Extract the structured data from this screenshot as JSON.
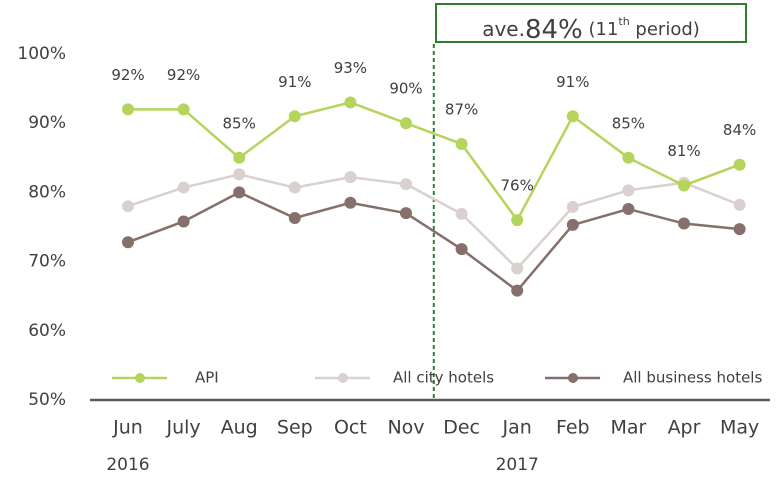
{
  "chart_data": {
    "type": "line",
    "annotation": [
      "ave.",
      "84%",
      " (11",
      "th",
      " period)"
    ],
    "categories": [
      "Jun",
      "July",
      "Aug",
      "Sep",
      "Oct",
      "Nov",
      "Dec",
      "Jan",
      "Feb",
      "Mar",
      "Apr",
      "May"
    ],
    "year_labels": [
      "2016",
      null,
      null,
      null,
      null,
      null,
      null,
      "2017",
      null,
      null,
      null,
      null
    ],
    "series": [
      {
        "name": "API",
        "color": "#b5d45c",
        "values": [
          92,
          92,
          85,
          91,
          93,
          90,
          87,
          76,
          91,
          85,
          81,
          84
        ],
        "value_labels": [
          "92%",
          "92%",
          "85%",
          "91%",
          "93%",
          "90%",
          "87%",
          "76%",
          "91%",
          "85%",
          "81%",
          "84%"
        ]
      },
      {
        "name": "All city hotels",
        "color": "#d9d0cf",
        "values": [
          78,
          80.7,
          82.6,
          80.7,
          82.2,
          81.2,
          76.9,
          69,
          77.9,
          80.3,
          81.4,
          78.2
        ]
      },
      {
        "name": "All business hotels",
        "color": "#85706b",
        "values": [
          72.8,
          75.8,
          80,
          76.3,
          78.5,
          77,
          71.8,
          65.8,
          75.3,
          77.6,
          75.5,
          74.7
        ]
      }
    ],
    "ylim": [
      50,
      100
    ],
    "yticks": [
      {
        "value": 50,
        "label": "50%"
      },
      {
        "value": 60,
        "label": "60%"
      },
      {
        "value": 70,
        "label": "70%"
      },
      {
        "value": 80,
        "label": "80%"
      },
      {
        "value": 90,
        "label": "90%"
      },
      {
        "value": 100,
        "label": "100%"
      }
    ],
    "divider_color": "#2e7d32"
  }
}
